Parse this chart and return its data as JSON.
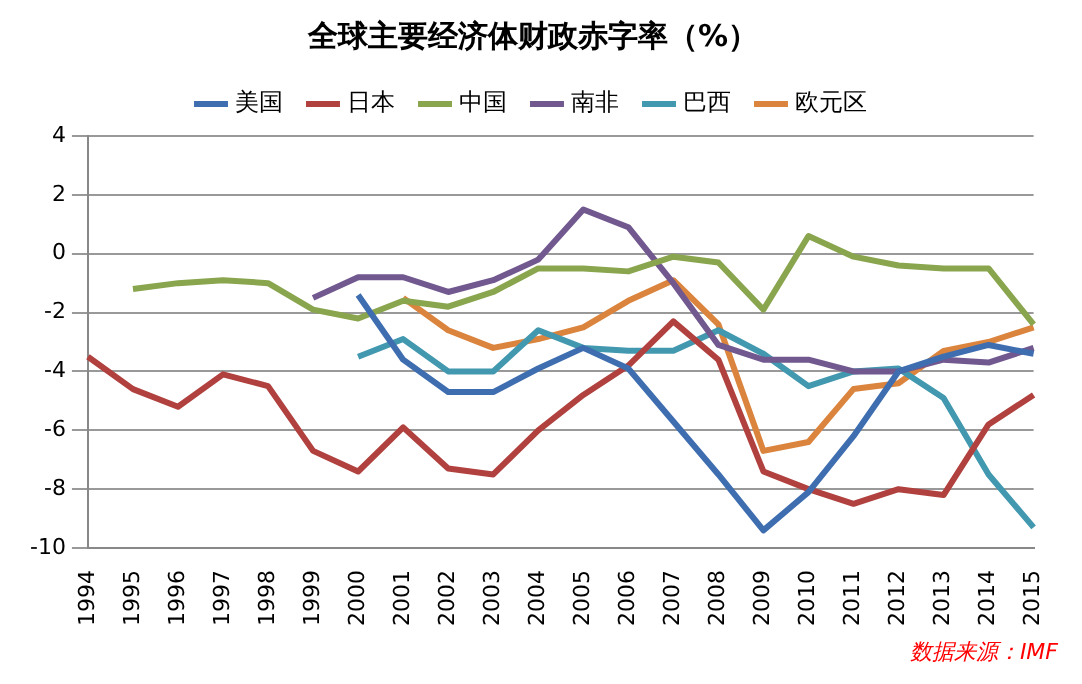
{
  "chart_data": {
    "type": "line",
    "title": "全球主要经济体财政赤字率（%）",
    "categories": [
      "1994",
      "1995",
      "1996",
      "1997",
      "1998",
      "1999",
      "2000",
      "2001",
      "2002",
      "2003",
      "2004",
      "2005",
      "2006",
      "2007",
      "2008",
      "2009",
      "2010",
      "2011",
      "2012",
      "2013",
      "2014",
      "2015"
    ],
    "series": [
      {
        "name": "美国",
        "color": "#3f6eb0",
        "values": [
          null,
          null,
          null,
          null,
          null,
          null,
          -1.4,
          -3.6,
          -4.7,
          -4.7,
          -3.9,
          -3.2,
          -3.9,
          -5.7,
          -7.5,
          -9.4,
          -8.1,
          -6.2,
          -4.0,
          -3.5,
          -3.1,
          -3.4
        ]
      },
      {
        "name": "日本",
        "color": "#b0413e",
        "values": [
          -3.5,
          -4.6,
          -5.2,
          -4.1,
          -4.5,
          -6.7,
          -7.4,
          -5.9,
          -7.3,
          -7.5,
          -6.0,
          -4.8,
          -3.8,
          -2.3,
          -3.6,
          -7.4,
          -8.0,
          -8.5,
          -8.0,
          -8.2,
          -5.8,
          -4.8
        ]
      },
      {
        "name": "中国",
        "color": "#89a54e",
        "values": [
          null,
          -1.2,
          -1.0,
          -0.9,
          -1.0,
          -1.9,
          -2.2,
          -1.6,
          -1.8,
          -1.3,
          -0.5,
          -0.5,
          -0.6,
          -0.1,
          -0.3,
          -1.9,
          0.6,
          -0.1,
          -0.4,
          -0.5,
          -0.5,
          -2.4
        ]
      },
      {
        "name": "南非",
        "color": "#71588f",
        "values": [
          null,
          null,
          null,
          null,
          null,
          -1.5,
          -0.8,
          -0.8,
          -1.3,
          -0.9,
          -0.2,
          1.5,
          0.9,
          -1.0,
          -3.1,
          -3.6,
          -3.6,
          -4.0,
          -4.0,
          -3.6,
          -3.7,
          -3.2
        ]
      },
      {
        "name": "巴西",
        "color": "#4198af",
        "values": [
          null,
          null,
          null,
          null,
          null,
          null,
          -3.5,
          -2.9,
          -4.0,
          -4.0,
          -2.6,
          -3.2,
          -3.3,
          -3.3,
          -2.6,
          -3.4,
          -4.5,
          -4.0,
          -3.9,
          -4.9,
          -7.5,
          -9.3
        ]
      },
      {
        "name": "欧元区",
        "color": "#db843d",
        "values": [
          null,
          null,
          null,
          null,
          null,
          null,
          null,
          -1.5,
          -2.6,
          -3.2,
          -2.9,
          -2.5,
          -1.6,
          -0.9,
          -2.4,
          -6.7,
          -6.4,
          -4.6,
          -4.4,
          -3.3,
          -3.0,
          -2.5
        ]
      }
    ],
    "ylim": [
      -10,
      4
    ],
    "yticks": [
      -10,
      -8,
      -6,
      -4,
      -2,
      0,
      2,
      4
    ],
    "grid": "y",
    "legend": "top",
    "marker": "none",
    "line_style": "solid",
    "annotations": [
      "数据来源：IMF"
    ]
  }
}
